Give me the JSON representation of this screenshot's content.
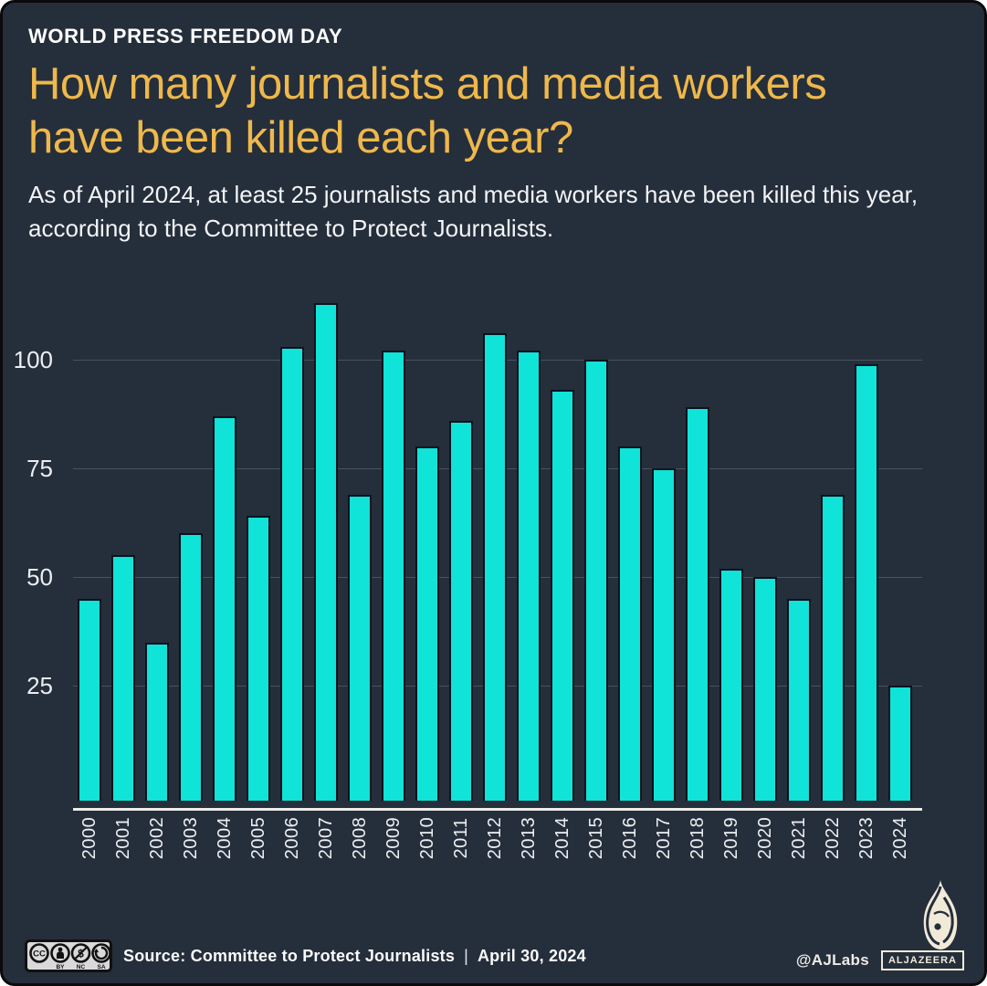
{
  "colors": {
    "background": "#252E3B",
    "frame": "#0A0A0A",
    "accent_gold": "#EEB84B",
    "bar_fill": "#10E3D8",
    "bar_border": "#0B141F",
    "gridline": "#4A525E",
    "axis_line": "#ECECEA",
    "text_primary": "#FFFFFF",
    "brand_cream": "#F2EAD8"
  },
  "header": {
    "kicker": "WORLD PRESS FREEDOM DAY",
    "title_line1": "How many journalists and media workers",
    "title_line2": "have been killed each year?",
    "subtitle_line1": "As of April 2024, at least 25 journalists and media workers have been killed this year,",
    "subtitle_line2": "according to the Committee to Protect Journalists."
  },
  "chart_data": {
    "type": "bar",
    "title": "How many journalists and media workers have been killed each year?",
    "xlabel": "",
    "ylabel": "",
    "categories": [
      "2000",
      "2001",
      "2002",
      "2003",
      "2004",
      "2005",
      "2006",
      "2007",
      "2008",
      "2009",
      "2010",
      "2011",
      "2012",
      "2013",
      "2014",
      "2015",
      "2016",
      "2017",
      "2018",
      "2019",
      "2020",
      "2021",
      "2022",
      "2023",
      "2024"
    ],
    "values": [
      45,
      55,
      35,
      60,
      87,
      64,
      103,
      113,
      69,
      102,
      80,
      86,
      106,
      102,
      93,
      100,
      80,
      75,
      89,
      52,
      50,
      45,
      69,
      99,
      25
    ],
    "yticks": [
      25,
      50,
      75,
      100
    ],
    "ylim": [
      0,
      120
    ],
    "grid": "horizontal",
    "legend": "none",
    "bar_color": "#10E3D8"
  },
  "footer": {
    "license": {
      "name": "CC BY-NC-SA",
      "cc_text": "CC",
      "labels": [
        "BY",
        "NC",
        "SA"
      ],
      "icons": [
        "cc-icon",
        "attribution-icon",
        "non-commercial-icon",
        "share-alike-icon"
      ]
    },
    "source_label": "Source: Committee to Protect Journalists",
    "separator": "|",
    "date": "April 30, 2024",
    "credit": "@AJLabs",
    "brand": {
      "wordmark": "ALJAZEERA",
      "logo": "aljazeera-flame-logo"
    }
  }
}
